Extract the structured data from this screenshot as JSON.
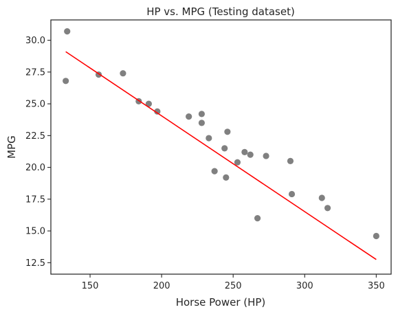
{
  "chart_data": {
    "type": "scatter",
    "title": "HP vs. MPG (Testing dataset)",
    "xlabel": "Horse Power (HP)",
    "ylabel": "MPG",
    "xlim": [
      122.6,
      360.4
    ],
    "ylim": [
      11.6,
      31.6
    ],
    "xticks": [
      150,
      200,
      250,
      300,
      350
    ],
    "yticks": [
      12.5,
      15.0,
      17.5,
      20.0,
      22.5,
      25.0,
      27.5,
      30.0
    ],
    "xtick_labels": [
      "150",
      "200",
      "250",
      "300",
      "350"
    ],
    "ytick_labels": [
      "12.5",
      "15.0",
      "17.5",
      "20.0",
      "22.5",
      "25.0",
      "27.5",
      "30.0"
    ],
    "grid": false,
    "legend": "none",
    "colors": {
      "points": "#808080",
      "fit_line": "#ff0000",
      "axes": "#262626"
    },
    "points": [
      {
        "x": 134,
        "y": 30.7
      },
      {
        "x": 133,
        "y": 26.8
      },
      {
        "x": 156,
        "y": 27.3
      },
      {
        "x": 173,
        "y": 27.4
      },
      {
        "x": 184,
        "y": 25.2
      },
      {
        "x": 191,
        "y": 25.0
      },
      {
        "x": 197,
        "y": 24.4
      },
      {
        "x": 219,
        "y": 24.0
      },
      {
        "x": 228,
        "y": 24.2
      },
      {
        "x": 228,
        "y": 23.5
      },
      {
        "x": 233,
        "y": 22.3
      },
      {
        "x": 246,
        "y": 22.8
      },
      {
        "x": 244,
        "y": 21.5
      },
      {
        "x": 237,
        "y": 19.7
      },
      {
        "x": 245,
        "y": 19.2
      },
      {
        "x": 253,
        "y": 20.4
      },
      {
        "x": 258,
        "y": 21.2
      },
      {
        "x": 262,
        "y": 21.0
      },
      {
        "x": 273,
        "y": 20.9
      },
      {
        "x": 267,
        "y": 16.0
      },
      {
        "x": 290,
        "y": 20.5
      },
      {
        "x": 291,
        "y": 17.9
      },
      {
        "x": 312,
        "y": 17.6
      },
      {
        "x": 316,
        "y": 16.8
      },
      {
        "x": 350,
        "y": 14.6
      }
    ],
    "fit_line": {
      "x": [
        133,
        350
      ],
      "y": [
        29.1,
        12.75
      ]
    }
  }
}
